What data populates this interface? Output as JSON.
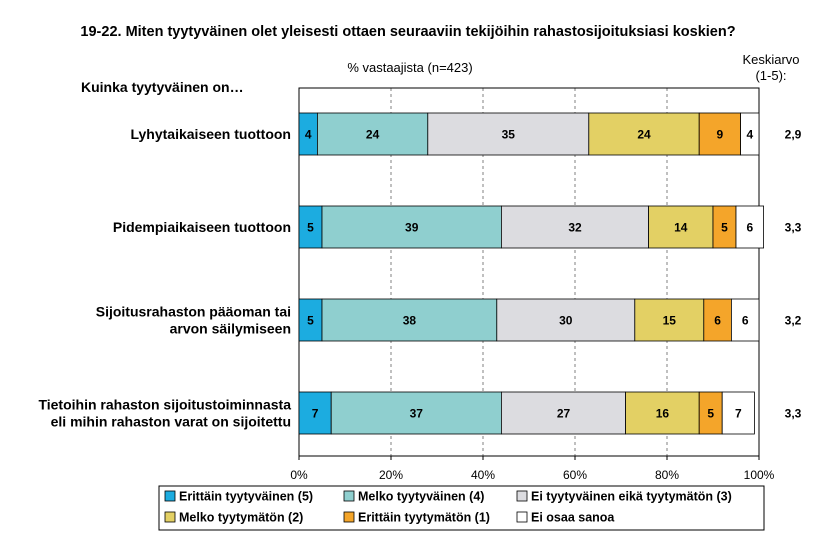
{
  "title": "19-22. Miten tyytyväinen olet yleisesti ottaen seuraaviin tekijöihin rahastosijoituksiasi koskien?",
  "subtitle": "% vastaajista (n=423)",
  "question_label": "Kuinka tyytyväinen on…",
  "average_header": [
    "Keskiarvo",
    "(1-5):"
  ],
  "chart_data": {
    "type": "bar",
    "stacked": true,
    "orientation": "horizontal",
    "categories": [
      [
        "Lyhytaikaiseen tuottoon"
      ],
      [
        "Pidempiaikaiseen tuottoon"
      ],
      [
        "Sijoitusrahaston pääoman tai",
        "arvon säilymiseen"
      ],
      [
        "Tietoihin rahaston sijoitustoiminnasta",
        "eli mihin rahaston varat on sijoitettu"
      ]
    ],
    "series": [
      {
        "name": "Erittäin tyytyväinen (5)",
        "color": "#1cace0",
        "values": [
          4,
          5,
          5,
          7
        ]
      },
      {
        "name": "Melko tyytyväinen (4)",
        "color": "#8fcfcf",
        "values": [
          24,
          39,
          38,
          37
        ]
      },
      {
        "name": "Ei tyytyväinen eikä tyytymätön (3)",
        "color": "#dcdce0",
        "values": [
          35,
          32,
          30,
          27
        ]
      },
      {
        "name": "Melko tyytymätön (2)",
        "color": "#e3d064",
        "values": [
          24,
          14,
          15,
          16
        ]
      },
      {
        "name": "Erittäin tyytymätön (1)",
        "color": "#f4a52a",
        "values": [
          9,
          5,
          6,
          5
        ]
      },
      {
        "name": "Ei osaa sanoa",
        "color": "#ffffff",
        "values": [
          4,
          6,
          6,
          7
        ]
      }
    ],
    "averages": [
      "2,9",
      "3,3",
      "3,2",
      "3,3"
    ],
    "xlim": [
      0,
      100
    ],
    "xticks": [
      "0%",
      "20%",
      "40%",
      "60%",
      "80%",
      "100%"
    ],
    "grid": "dashed-vertical",
    "legend_position": "bottom"
  }
}
